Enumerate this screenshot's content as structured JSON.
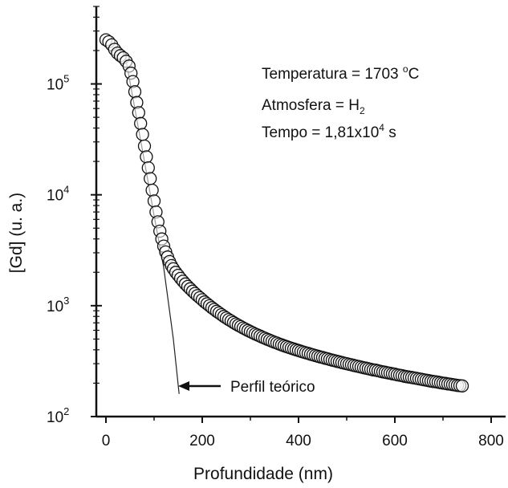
{
  "chart_data": {
    "type": "scatter",
    "title": "",
    "xlabel": "Profundidade (nm)",
    "ylabel": "[Gd] (u. a.)",
    "xlim": [
      -20,
      830
    ],
    "ylim": [
      100,
      500000
    ],
    "yscale": "log",
    "x_ticks": [
      0,
      200,
      400,
      600,
      800
    ],
    "x_tick_labels": [
      "0",
      "200",
      "400",
      "600",
      "800"
    ],
    "y_ticks": [
      100,
      1000,
      10000,
      100000
    ],
    "y_tick_labels": [
      {
        "base": "10",
        "exp": "2"
      },
      {
        "base": "10",
        "exp": "3"
      },
      {
        "base": "10",
        "exp": "4"
      },
      {
        "base": "10",
        "exp": "5"
      }
    ],
    "annotations": [
      {
        "line": [
          "Temperatura = 1703 ",
          "o",
          "C"
        ]
      },
      {
        "line": [
          "Atmosfera = H",
          "2",
          ""
        ]
      },
      {
        "line": [
          "Tempo = 1,81x10",
          "4",
          " s"
        ]
      }
    ],
    "arrow_label": "Perfil teórico",
    "series": [
      {
        "marker": "open-circle",
        "points": [
          [
            0,
            250000
          ],
          [
            6,
            240000
          ],
          [
            12,
            225000
          ],
          [
            18,
            205000
          ],
          [
            24,
            190000
          ],
          [
            30,
            180000
          ],
          [
            36,
            172000
          ],
          [
            42,
            160000
          ],
          [
            48,
            145000
          ],
          [
            52,
            125000
          ],
          [
            56,
            105000
          ],
          [
            60,
            85000
          ],
          [
            64,
            68000
          ],
          [
            68,
            55000
          ],
          [
            72,
            44000
          ],
          [
            76,
            35000
          ],
          [
            80,
            27500
          ],
          [
            84,
            22000
          ],
          [
            88,
            17500
          ],
          [
            92,
            14000
          ],
          [
            96,
            11000
          ],
          [
            100,
            8800
          ],
          [
            104,
            7000
          ],
          [
            108,
            5700
          ],
          [
            112,
            4700
          ],
          [
            116,
            4000
          ],
          [
            120,
            3450
          ],
          [
            124,
            3050
          ],
          [
            128,
            2750
          ],
          [
            132,
            2500
          ],
          [
            136,
            2300
          ],
          [
            140,
            2150
          ],
          [
            145,
            2000
          ],
          [
            150,
            1880
          ],
          [
            155,
            1760
          ],
          [
            160,
            1660
          ],
          [
            165,
            1570
          ],
          [
            170,
            1490
          ],
          [
            175,
            1420
          ],
          [
            180,
            1350
          ],
          [
            185,
            1290
          ],
          [
            190,
            1230
          ],
          [
            195,
            1180
          ],
          [
            200,
            1130
          ],
          [
            205,
            1080
          ],
          [
            210,
            1040
          ],
          [
            215,
            1000
          ],
          [
            220,
            960
          ],
          [
            225,
            925
          ],
          [
            230,
            890
          ],
          [
            235,
            860
          ],
          [
            240,
            830
          ],
          [
            245,
            800
          ],
          [
            250,
            775
          ],
          [
            255,
            750
          ],
          [
            260,
            728
          ],
          [
            265,
            705
          ],
          [
            270,
            685
          ],
          [
            275,
            665
          ],
          [
            280,
            648
          ],
          [
            285,
            630
          ],
          [
            290,
            614
          ],
          [
            295,
            598
          ],
          [
            300,
            584
          ],
          [
            305,
            570
          ],
          [
            310,
            556
          ],
          [
            315,
            544
          ],
          [
            320,
            532
          ],
          [
            325,
            520
          ],
          [
            330,
            509
          ],
          [
            335,
            498
          ],
          [
            340,
            488
          ],
          [
            345,
            478
          ],
          [
            350,
            468
          ],
          [
            355,
            460
          ],
          [
            360,
            451
          ],
          [
            365,
            443
          ],
          [
            370,
            435
          ],
          [
            375,
            428
          ],
          [
            380,
            420
          ],
          [
            385,
            413
          ],
          [
            390,
            407
          ],
          [
            395,
            400
          ],
          [
            400,
            394
          ],
          [
            405,
            388
          ],
          [
            410,
            382
          ],
          [
            415,
            376
          ],
          [
            420,
            371
          ],
          [
            425,
            365
          ],
          [
            430,
            360
          ],
          [
            435,
            355
          ],
          [
            440,
            350
          ],
          [
            445,
            345
          ],
          [
            450,
            341
          ],
          [
            455,
            336
          ],
          [
            460,
            332
          ],
          [
            465,
            327
          ],
          [
            470,
            323
          ],
          [
            475,
            319
          ],
          [
            480,
            315
          ],
          [
            485,
            311
          ],
          [
            490,
            307
          ],
          [
            495,
            303
          ],
          [
            500,
            300
          ],
          [
            505,
            296
          ],
          [
            510,
            293
          ],
          [
            515,
            289
          ],
          [
            520,
            286
          ],
          [
            525,
            283
          ],
          [
            530,
            279
          ],
          [
            535,
            276
          ],
          [
            540,
            273
          ],
          [
            545,
            270
          ],
          [
            550,
            267
          ],
          [
            555,
            264
          ],
          [
            560,
            262
          ],
          [
            565,
            259
          ],
          [
            570,
            256
          ],
          [
            575,
            253
          ],
          [
            580,
            251
          ],
          [
            585,
            248
          ],
          [
            590,
            246
          ],
          [
            595,
            243
          ],
          [
            600,
            241
          ],
          [
            605,
            238
          ],
          [
            610,
            236
          ],
          [
            615,
            234
          ],
          [
            620,
            231
          ],
          [
            625,
            229
          ],
          [
            630,
            227
          ],
          [
            635,
            225
          ],
          [
            640,
            223
          ],
          [
            645,
            221
          ],
          [
            650,
            219
          ],
          [
            655,
            217
          ],
          [
            660,
            215
          ],
          [
            665,
            213
          ],
          [
            670,
            211
          ],
          [
            675,
            209
          ],
          [
            680,
            207
          ],
          [
            685,
            206
          ],
          [
            690,
            204
          ],
          [
            695,
            202
          ],
          [
            700,
            200
          ],
          [
            705,
            199
          ],
          [
            710,
            197
          ],
          [
            715,
            196
          ],
          [
            720,
            194
          ],
          [
            725,
            193
          ],
          [
            730,
            191
          ],
          [
            735,
            190
          ],
          [
            740,
            189
          ]
        ]
      },
      {
        "type": "line",
        "points": [
          [
            38,
            200000
          ],
          [
            60,
            60000
          ],
          [
            80,
            20000
          ],
          [
            100,
            6500
          ],
          [
            120,
            2200
          ],
          [
            140,
            500
          ],
          [
            152,
            160
          ]
        ]
      }
    ]
  }
}
